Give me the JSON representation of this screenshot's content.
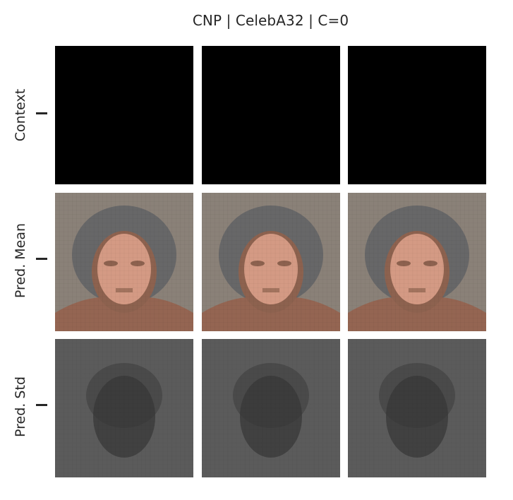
{
  "title": "CNP | CelebA32 | C=0",
  "rows": [
    {
      "label": "Context",
      "kind": "context"
    },
    {
      "label": "Pred. Mean",
      "kind": "mean"
    },
    {
      "label": "Pred. Std",
      "kind": "std"
    }
  ],
  "columns": 3,
  "colors": {
    "context_fill": "#000000",
    "mean_background": "#8a8178",
    "mean_hair": "#5e6064",
    "mean_skin": "#d49a84",
    "mean_shadow": "#8d624f",
    "mean_shoulders": "#946552",
    "std_background": "#5b5b5b",
    "std_dark": "#363636"
  }
}
